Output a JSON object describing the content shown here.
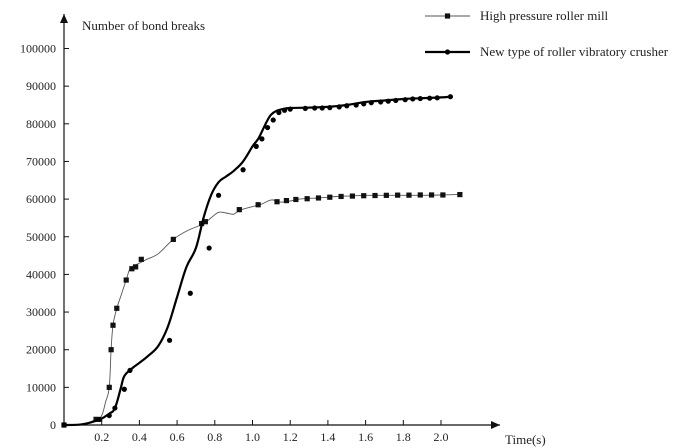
{
  "chart_data": {
    "type": "line",
    "xlabel": "Time(s)",
    "ylabel": "Number of bond breaks",
    "xlim": [
      0,
      2.2
    ],
    "ylim": [
      0,
      100000
    ],
    "x_ticks": [
      "0.2",
      "0.4",
      "0.6",
      "0.8",
      "1.0",
      "1.2",
      "1.4",
      "1.6",
      "1.8",
      "2.0"
    ],
    "y_ticks": [
      "0",
      "10000",
      "20000",
      "30000",
      "40000",
      "50000",
      "60000",
      "70000",
      "80000",
      "90000",
      "100000"
    ],
    "legend_position": "top-right",
    "grid": false,
    "series": [
      {
        "name": "High pressure roller mill",
        "marker": "square",
        "line": "thin",
        "color": "#555555",
        "x": [
          0.0,
          0.1,
          0.17,
          0.2,
          0.22,
          0.24,
          0.25,
          0.26,
          0.28,
          0.3,
          0.33,
          0.35,
          0.38,
          0.4,
          0.44,
          0.5,
          0.58,
          0.65,
          0.72,
          0.75,
          0.78,
          0.82,
          0.86,
          0.9,
          0.93,
          1.0,
          1.05,
          1.1,
          1.15,
          1.2,
          1.25,
          1.3,
          1.35,
          1.4,
          1.45,
          1.5,
          1.55,
          1.6,
          1.7,
          1.8,
          1.9,
          2.0,
          2.1
        ],
        "y": [
          0,
          300,
          1500,
          2500,
          6000,
          10000,
          20000,
          26500,
          31000,
          34000,
          38500,
          41500,
          42500,
          43000,
          44000,
          45500,
          49300,
          51500,
          53000,
          53800,
          55000,
          56500,
          56300,
          56000,
          57000,
          58000,
          58700,
          59800,
          59200,
          59500,
          60000,
          60200,
          60300,
          60500,
          60700,
          60800,
          60900,
          61000,
          61000,
          61000,
          61000,
          61100,
          61200
        ],
        "marker_x": [
          0.0,
          0.17,
          0.24,
          0.25,
          0.26,
          0.28,
          0.33,
          0.36,
          0.38,
          0.41,
          0.58,
          0.73,
          0.75,
          0.93,
          1.03,
          1.13,
          1.18,
          1.23,
          1.29,
          1.35,
          1.41,
          1.47,
          1.53,
          1.59,
          1.65,
          1.71,
          1.77,
          1.83,
          1.89,
          1.95,
          2.01,
          2.1
        ],
        "marker_y": [
          0,
          1500,
          10000,
          20000,
          26500,
          31000,
          38500,
          41500,
          42000,
          44000,
          49300,
          53500,
          54000,
          57200,
          58500,
          59300,
          59600,
          59900,
          60100,
          60300,
          60500,
          60700,
          60800,
          60900,
          60950,
          61000,
          61050,
          61050,
          61100,
          61100,
          61100,
          61200
        ]
      },
      {
        "name": "New type of roller vibratory crusher",
        "marker": "circle",
        "line": "thick",
        "color": "#000000",
        "x": [
          0.0,
          0.1,
          0.19,
          0.24,
          0.27,
          0.3,
          0.32,
          0.36,
          0.4,
          0.45,
          0.5,
          0.55,
          0.6,
          0.65,
          0.7,
          0.74,
          0.78,
          0.82,
          0.86,
          0.9,
          0.95,
          1.0,
          1.03,
          1.06,
          1.08,
          1.1,
          1.13,
          1.17,
          1.2,
          1.3,
          1.4,
          1.5,
          1.6,
          1.7,
          1.8,
          1.9,
          2.0,
          2.05
        ],
        "y": [
          0,
          200,
          1500,
          3000,
          4500,
          9500,
          13000,
          15000,
          16500,
          18500,
          21000,
          26000,
          34000,
          42000,
          47000,
          55000,
          61000,
          64500,
          66000,
          67500,
          70000,
          74000,
          76000,
          79000,
          81000,
          82500,
          83500,
          84000,
          84200,
          84300,
          84500,
          85000,
          85800,
          86200,
          86600,
          86800,
          87000,
          87200
        ],
        "marker_x": [
          0.0,
          0.19,
          0.24,
          0.27,
          0.32,
          0.35,
          0.56,
          0.67,
          0.77,
          0.82,
          0.95,
          1.02,
          1.05,
          1.08,
          1.11,
          1.14,
          1.17,
          1.2,
          1.28,
          1.33,
          1.37,
          1.41,
          1.46,
          1.5,
          1.55,
          1.59,
          1.63,
          1.68,
          1.72,
          1.76,
          1.81,
          1.85,
          1.89,
          1.94,
          1.98,
          2.05
        ],
        "marker_y": [
          0,
          1500,
          2500,
          4500,
          9500,
          14500,
          22500,
          35000,
          47000,
          61000,
          67800,
          74000,
          76000,
          79000,
          81000,
          83000,
          83600,
          83900,
          84100,
          84200,
          84200,
          84300,
          84500,
          84800,
          85000,
          85300,
          85600,
          85800,
          86000,
          86200,
          86400,
          86600,
          86700,
          86800,
          86900,
          87200
        ]
      }
    ]
  }
}
